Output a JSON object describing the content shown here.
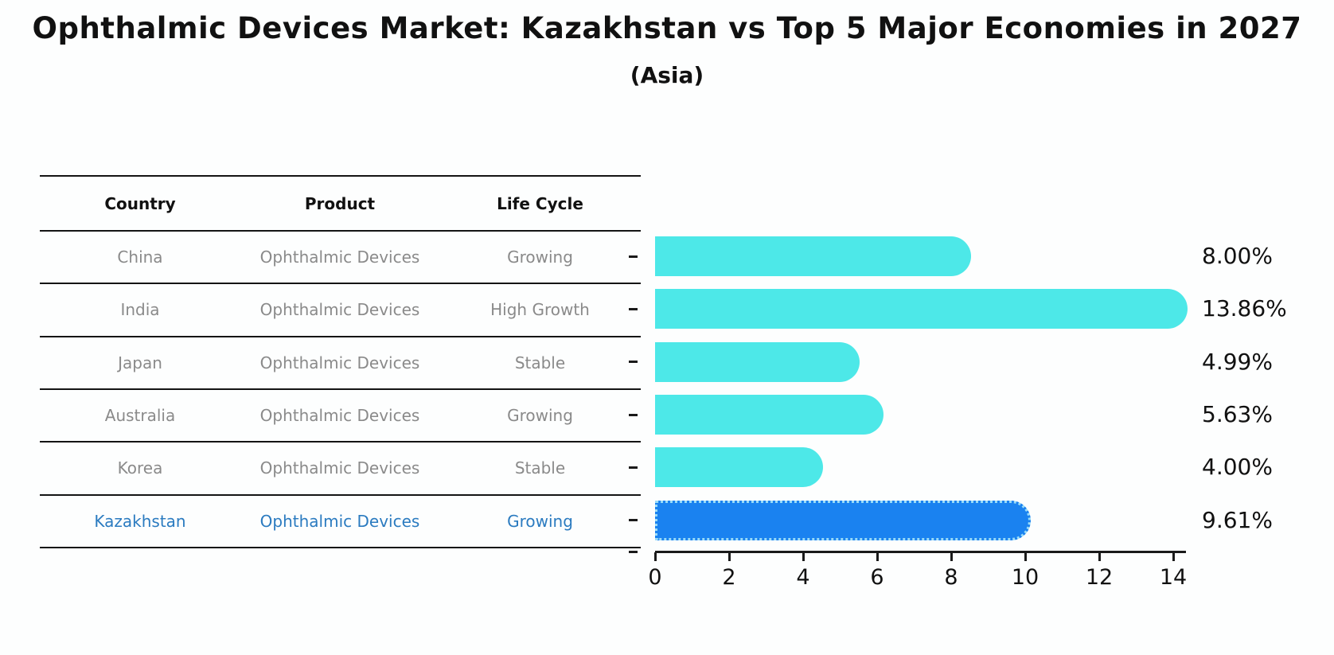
{
  "title": "Ophthalmic Devices Market: Kazakhstan vs Top 5 Major Economies in 2027",
  "subtitle": "(Asia)",
  "table": {
    "columns": [
      "Country",
      "Product",
      "Life Cycle"
    ],
    "rows": [
      {
        "country": "China",
        "product": "Ophthalmic Devices",
        "life_cycle": "Growing",
        "highlight": false
      },
      {
        "country": "India",
        "product": "Ophthalmic Devices",
        "life_cycle": "High Growth",
        "highlight": false
      },
      {
        "country": "Japan",
        "product": "Ophthalmic Devices",
        "life_cycle": "Stable",
        "highlight": false
      },
      {
        "country": "Australia",
        "product": "Ophthalmic Devices",
        "life_cycle": "Growing",
        "highlight": false
      },
      {
        "country": "Korea",
        "product": "Ophthalmic Devices",
        "life_cycle": "Stable",
        "highlight": false
      },
      {
        "country": "Kazakhstan",
        "product": "Ophthalmic Devices",
        "life_cycle": "Growing",
        "highlight": true
      }
    ]
  },
  "chart_data": {
    "type": "bar",
    "orientation": "horizontal",
    "title": "Ophthalmic Devices Market: Kazakhstan vs Top 5 Major Economies in 2027",
    "subtitle": "(Asia)",
    "categories": [
      "China",
      "India",
      "Japan",
      "Australia",
      "Korea",
      "Kazakhstan"
    ],
    "values": [
      8.0,
      13.86,
      4.99,
      5.63,
      4.0,
      9.61
    ],
    "value_labels": [
      "8.00%",
      "13.86%",
      "4.99%",
      "5.63%",
      "4.00%",
      "9.61%"
    ],
    "xlabel": "",
    "ylabel": "",
    "xlim": [
      0,
      14
    ],
    "xticks": [
      0,
      2,
      4,
      6,
      8,
      10,
      12,
      14
    ],
    "grid": false,
    "legend_position": "none",
    "highlight_index": 5
  },
  "colors": {
    "bar": "#4de8e8",
    "highlight_bar": "#1a82f0",
    "highlight_bar_border": "#9adcf8",
    "row_text": "#8a8a8a",
    "highlight_row_text": "#2b7bc0",
    "header_text": "#111111",
    "axis": "#1a1a1a"
  }
}
